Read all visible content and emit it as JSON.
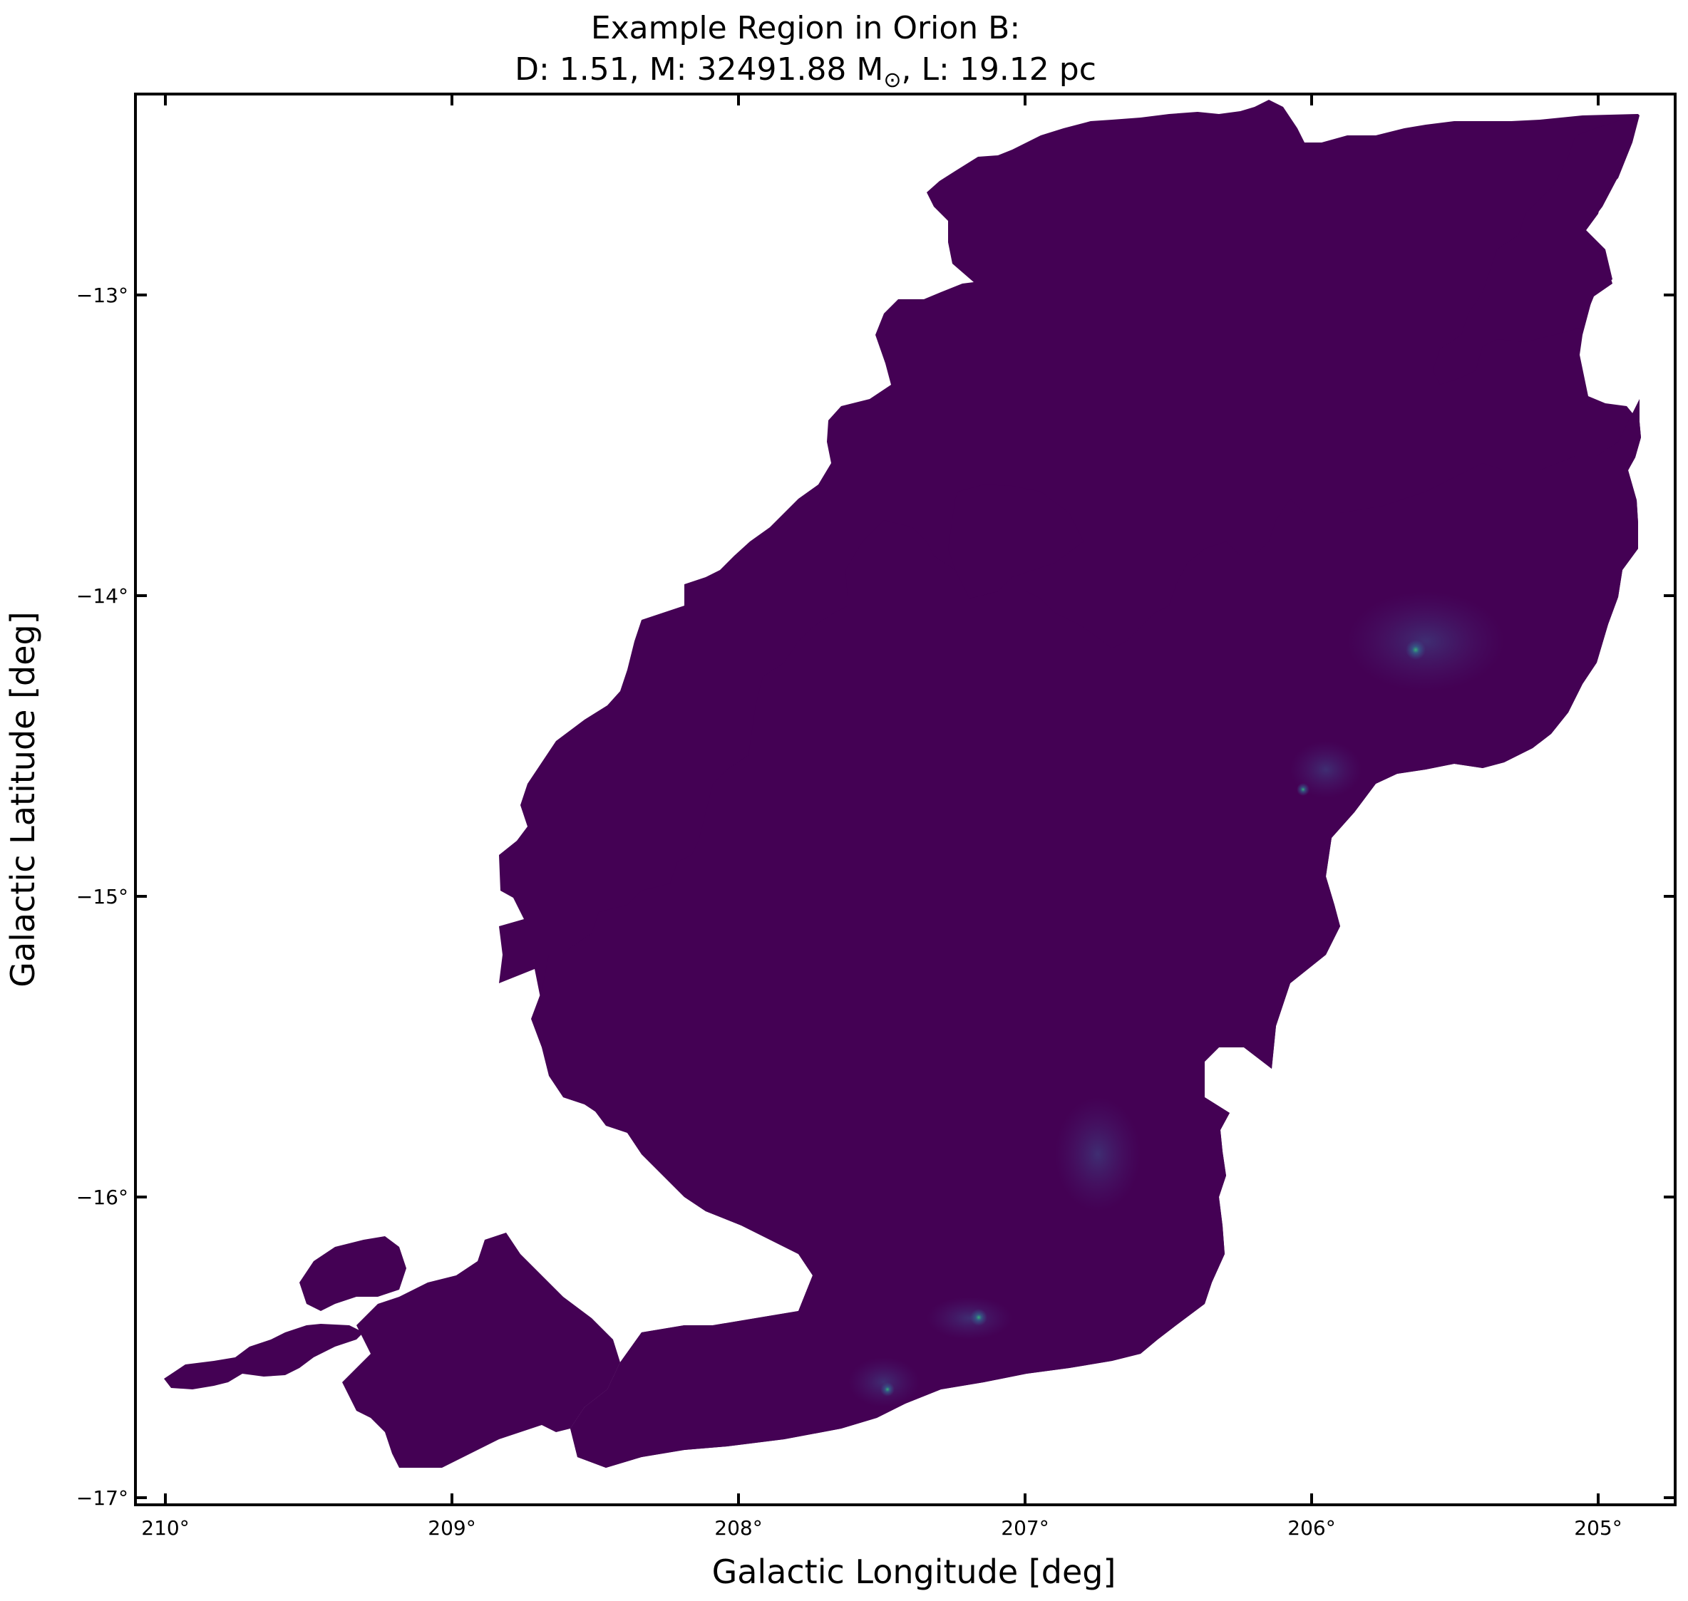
{
  "figure": {
    "title_line1": "Example Region in Orion B:",
    "title_line2_prefix": "D: 1.51, M: 32491.88 M",
    "title_line2_sun": "⊙",
    "title_line2_suffix": ", L: 19.12 pc",
    "xlabel": "Galactic Longitude [deg]",
    "ylabel": "Galactic Latitude [deg]",
    "colormap": "viridis",
    "background_color": "#ffffff",
    "cloud_color": "#440154",
    "x_axis": {
      "direction": "decreasing",
      "ticks": [
        {
          "value": 210,
          "label": "210°"
        },
        {
          "value": 209,
          "label": "209°"
        },
        {
          "value": 208,
          "label": "208°"
        },
        {
          "value": 207,
          "label": "207°"
        },
        {
          "value": 206,
          "label": "206°"
        },
        {
          "value": 205,
          "label": "205°"
        }
      ]
    },
    "y_axis": {
      "ticks": [
        {
          "value": -13,
          "label": "−13°"
        },
        {
          "value": -14,
          "label": "−14°"
        },
        {
          "value": -15,
          "label": "−15°"
        },
        {
          "value": -16,
          "label": "−16°"
        },
        {
          "value": -17,
          "label": "−17°"
        }
      ]
    }
  }
}
